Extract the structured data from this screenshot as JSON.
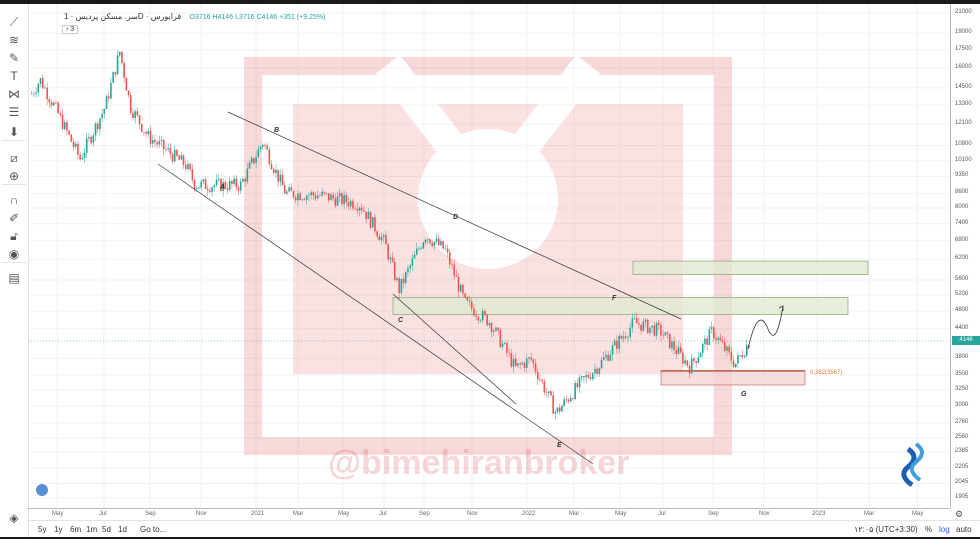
{
  "legend": {
    "symbol": "سر. مسکن پردیس",
    "interval": "1D",
    "exchange": "فرابورس",
    "open": "O3716",
    "high": "H4146",
    "low": "L3716",
    "close": "C4146",
    "change": "+351 (+9.25%)",
    "collapse": "› 3"
  },
  "toolbar": [
    "trend-line-icon",
    "fib-icon",
    "brush-icon",
    "text-icon",
    "pattern-icon",
    "measure-icon",
    "arrow-down-icon",
    "ruler-icon",
    "zoom-in-icon",
    "magnet-icon",
    "lock-draw-icon",
    "unlock-icon",
    "eye-icon",
    "trash-icon"
  ],
  "price_axis": [
    "21000",
    "19000",
    "17500",
    "16000",
    "14500",
    "13300",
    "12100",
    "10900",
    "10100",
    "9350",
    "8600",
    "8000",
    "7400",
    "6800",
    "6200",
    "5600",
    "5200",
    "4800",
    "4400",
    "3800",
    "3500",
    "3250",
    "3000",
    "2760",
    "2560",
    "2385",
    "2205",
    "2045",
    "1905"
  ],
  "last_price": "4146",
  "time_axis": [
    "May",
    "Jul",
    "Sep",
    "Nov",
    "2021",
    "Mar",
    "May",
    "Jul",
    "Sep",
    "Nov",
    "2022",
    "Mar",
    "May",
    "Jul",
    "Sep",
    "Nov",
    "2023",
    "Mar",
    "May"
  ],
  "annotations": {
    "A": "A",
    "B": "B",
    "C": "C",
    "D": "D",
    "E": "E",
    "F": "F",
    "G": "G",
    "fib": "0.382(3567)"
  },
  "watermark": "@bimehiranbroker",
  "bottom": {
    "ranges": [
      "5y",
      "1y",
      "6m",
      "1m",
      "5d",
      "1d"
    ],
    "goto": "Go to...",
    "timezone": "۱۲:۰۵ (UTC+3:30)",
    "percent": "%",
    "log": "log",
    "auto": "auto"
  },
  "colors": {
    "up": "#26a69a",
    "down": "#ef5350",
    "zone_green": "#dfe8d0",
    "zone_red": "#f6d3d3",
    "fib": "#e07b39",
    "accent": "#2962ff"
  },
  "chart_data": {
    "type": "candlestick",
    "scale": "log",
    "ylim": [
      1905,
      21000
    ],
    "xlim": [
      "2020-03-15",
      "2023-06-15"
    ],
    "grid": true,
    "price_path": [
      [
        "2020-03-29",
        14070
      ],
      [
        "2020-04-09",
        15100
      ],
      [
        "2020-04-28",
        13200
      ],
      [
        "2020-05-31",
        10200
      ],
      [
        "2020-07-03",
        13200
      ],
      [
        "2020-07-22",
        17350
      ],
      [
        "2020-08-05",
        13200
      ],
      [
        "2020-08-28",
        11400
      ],
      [
        "2020-10-16",
        9900
      ],
      [
        "2020-10-29",
        8960
      ],
      [
        "2020-12-01",
        8960
      ],
      [
        "2020-12-27",
        8960
      ],
      [
        "2021-01-25",
        11100
      ],
      [
        "2021-02-11",
        9550
      ],
      [
        "2021-02-24",
        8600
      ],
      [
        "2021-04-09",
        8520
      ],
      [
        "2021-06-01",
        8150
      ],
      [
        "2021-07-03",
        6740
      ],
      [
        "2021-07-22",
        5340
      ],
      [
        "2021-08-25",
        7000
      ],
      [
        "2021-09-20",
        6500
      ],
      [
        "2021-10-16",
        5000
      ],
      [
        "2021-11-18",
        4540
      ],
      [
        "2021-12-21",
        3615
      ],
      [
        "2022-01-10",
        3790
      ],
      [
        "2022-02-12",
        2900
      ],
      [
        "2022-03-15",
        3350
      ],
      [
        "2022-04-10",
        3690
      ],
      [
        "2022-05-25",
        4540
      ],
      [
        "2022-06-28",
        4350
      ],
      [
        "2022-08-06",
        3640
      ],
      [
        "2022-09-04",
        4350
      ],
      [
        "2022-10-04",
        3690
      ],
      [
        "2022-10-23",
        4146
      ]
    ],
    "zones": [
      {
        "color": "green",
        "from_price": 5750,
        "to_price": 6150
      },
      {
        "color": "green",
        "from_price": 4720,
        "to_price": 5140
      },
      {
        "color": "red",
        "from_price": 3330,
        "to_price": 3580
      }
    ],
    "fib_level": {
      "label": "0.382(3567)",
      "price": 3567
    }
  }
}
